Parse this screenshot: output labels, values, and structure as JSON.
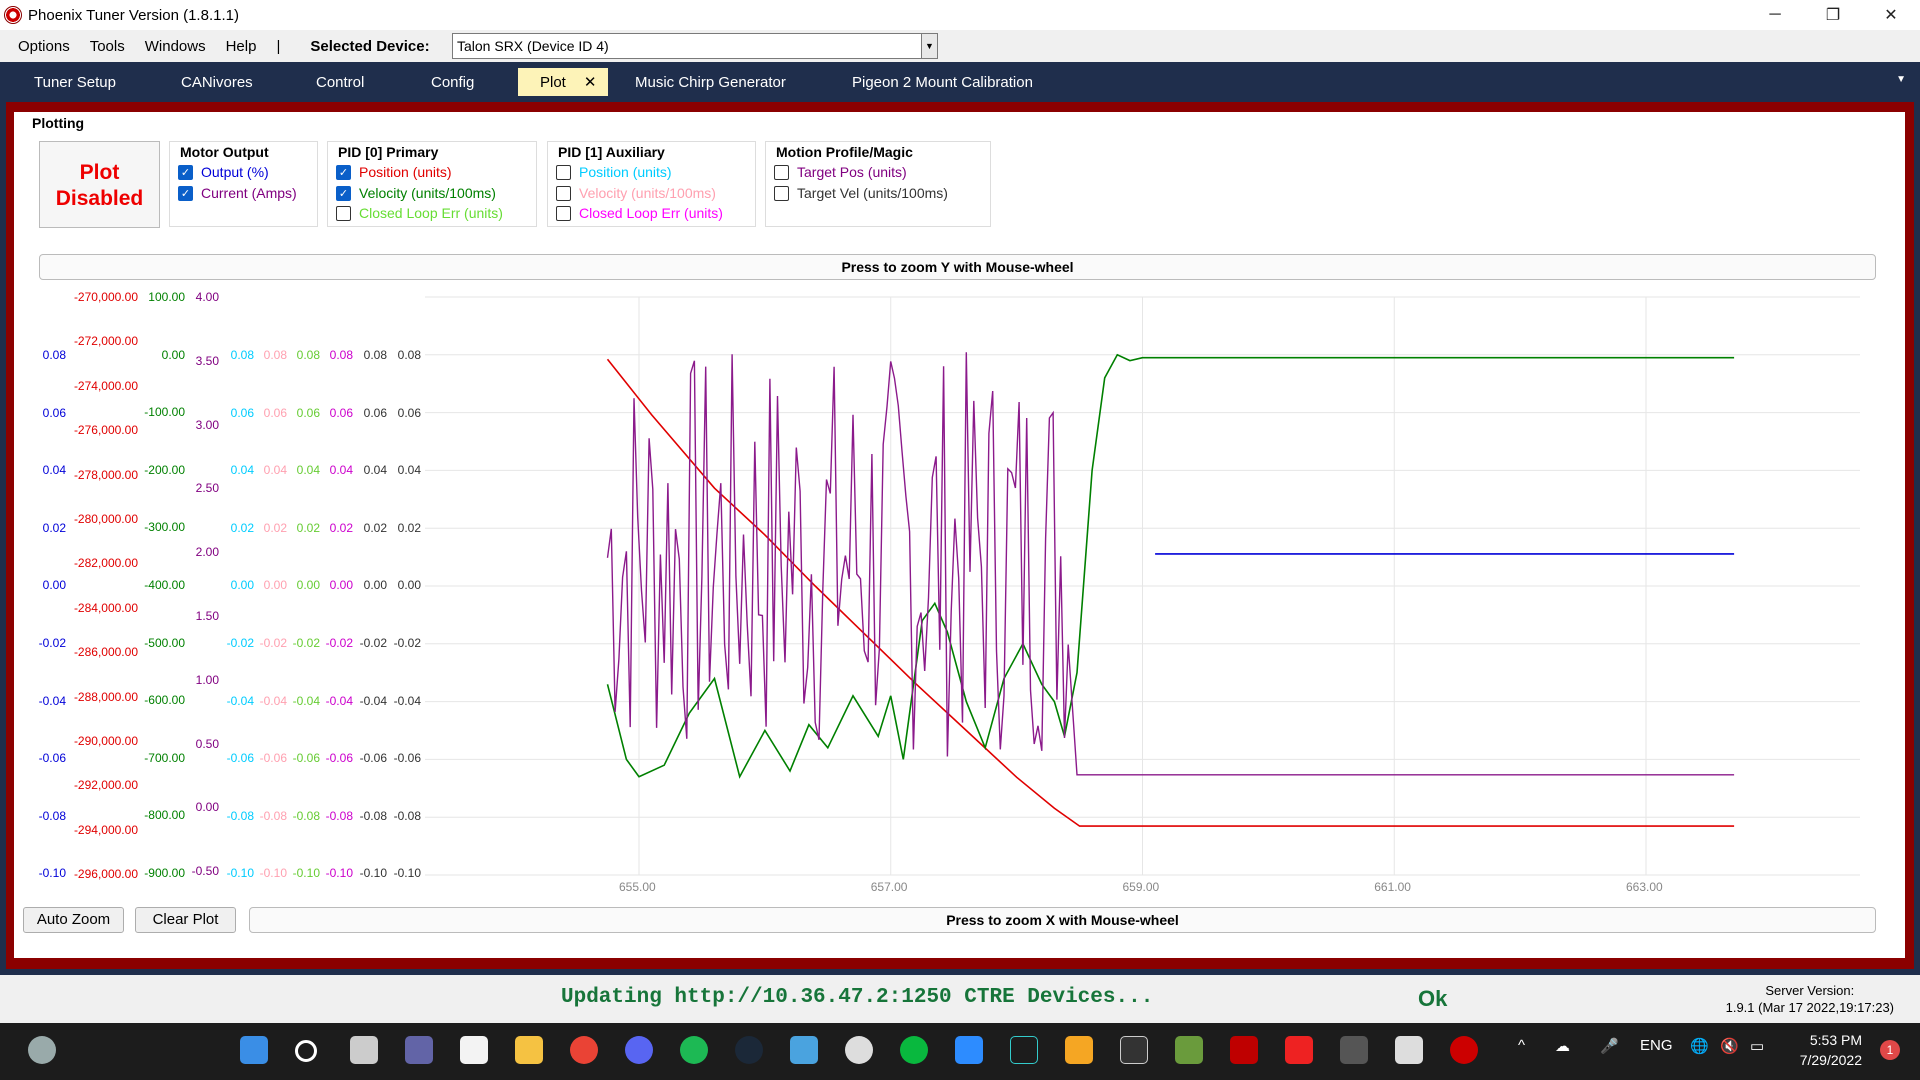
{
  "window": {
    "title": "Phoenix Tuner Version (1.8.1.1)",
    "minimize": "─",
    "restore": "❐",
    "close": "✕"
  },
  "menu": {
    "items": [
      "Options",
      "Tools",
      "Windows",
      "Help"
    ],
    "separator": "|",
    "selected_device_label": "Selected Device:",
    "selected_device_value": "Talon SRX (Device ID 4)"
  },
  "tabs": [
    {
      "label": "Tuner Setup"
    },
    {
      "label": "CANivores"
    },
    {
      "label": "Control"
    },
    {
      "label": "Config"
    },
    {
      "label": "Plot",
      "close": "✕"
    },
    {
      "label": "Music Chirp Generator"
    },
    {
      "label": "Pigeon 2 Mount Calibration"
    }
  ],
  "plot": {
    "section_label": "Plotting",
    "plot_toggle": "Plot Disabled",
    "groups": {
      "motor_output": {
        "title": "Motor Output",
        "items": [
          {
            "label": "Output (%)",
            "checked": true,
            "color": "#0000d8"
          },
          {
            "label": "Current (Amps)",
            "checked": true,
            "color": "#800080"
          }
        ]
      },
      "pid0": {
        "title": "PID [0] Primary",
        "items": [
          {
            "label": "Position (units)",
            "checked": true,
            "color": "#e00000"
          },
          {
            "label": "Velocity (units/100ms)",
            "checked": true,
            "color": "#008000"
          },
          {
            "label": "Closed Loop Err (units)",
            "checked": false,
            "color": "#66dd33"
          }
        ]
      },
      "pid1": {
        "title": "PID [1] Auxiliary",
        "items": [
          {
            "label": "Position (units)",
            "checked": false,
            "color": "#00ccff"
          },
          {
            "label": "Velocity (units/100ms)",
            "checked": false,
            "color": "#ffa0b0"
          },
          {
            "label": "Closed Loop Err (units)",
            "checked": false,
            "color": "#ff00ff"
          }
        ]
      },
      "motion": {
        "title": "Motion Profile/Magic",
        "items": [
          {
            "label": "Target Pos (units)",
            "checked": false,
            "color": "#800080"
          },
          {
            "label": "Target Vel (units/100ms)",
            "checked": false,
            "color": "#333333"
          }
        ]
      }
    },
    "zoom_y": "Press to zoom Y with Mouse-wheel",
    "zoom_x": "Press to zoom X with Mouse-wheel",
    "auto_zoom": "Auto Zoom",
    "clear_plot": "Clear Plot"
  },
  "chart_data": {
    "type": "line",
    "title": "",
    "xlabel": "",
    "ylabel": "",
    "x_ticks": [
      "655.00",
      "657.00",
      "659.00",
      "661.00",
      "663.00"
    ],
    "xlim": [
      653.3,
      664.7
    ],
    "grid": true,
    "y_axes": {
      "output": {
        "color": "#0000d8",
        "ticks": [
          "0.08",
          "0.06",
          "0.04",
          "0.02",
          "0.00",
          "-0.02",
          "-0.04",
          "-0.06",
          "-0.08",
          "-0.10"
        ]
      },
      "position": {
        "color": "#e00000",
        "ticks": [
          "-270,000.00",
          "-272,000.00",
          "-274,000.00",
          "-276,000.00",
          "-278,000.00",
          "-280,000.00",
          "-282,000.00",
          "-284,000.00",
          "-286,000.00",
          "-288,000.00",
          "-290,000.00",
          "-292,000.00",
          "-294,000.00",
          "-296,000.00"
        ]
      },
      "velocity": {
        "color": "#008000",
        "ticks": [
          "100.00",
          "0.00",
          "-100.00",
          "-200.00",
          "-300.00",
          "-400.00",
          "-500.00",
          "-600.00",
          "-700.00",
          "-800.00",
          "-900.00"
        ]
      },
      "current": {
        "color": "#800080",
        "ticks": [
          "4.00",
          "3.50",
          "3.00",
          "2.50",
          "2.00",
          "1.50",
          "1.00",
          "0.50",
          "0.00",
          "-0.50"
        ]
      },
      "pid1_pos": {
        "color": "#00ccff",
        "ticks": [
          "0.08",
          "0.06",
          "0.04",
          "0.02",
          "0.00",
          "-0.02",
          "-0.04",
          "-0.06",
          "-0.08",
          "-0.10"
        ]
      },
      "pid1_vel": {
        "color": "#ffa0b0",
        "ticks": [
          "0.08",
          "0.06",
          "0.04",
          "0.02",
          "0.00",
          "-0.02",
          "-0.04",
          "-0.06",
          "-0.08",
          "-0.10"
        ]
      },
      "pid0_err": {
        "color": "#66cc33",
        "ticks": [
          "0.08",
          "0.06",
          "0.04",
          "0.02",
          "0.00",
          "-0.02",
          "-0.04",
          "-0.06",
          "-0.08",
          "-0.10"
        ]
      },
      "pid1_err": {
        "color": "#cc00cc",
        "ticks": [
          "0.08",
          "0.06",
          "0.04",
          "0.02",
          "0.00",
          "-0.02",
          "-0.04",
          "-0.06",
          "-0.08",
          "-0.10"
        ]
      },
      "target_pos": {
        "color": "#333333",
        "ticks": [
          "0.08",
          "0.06",
          "0.04",
          "0.02",
          "0.00",
          "-0.02",
          "-0.04",
          "-0.06",
          "-0.08",
          "-0.10"
        ]
      },
      "target_vel": {
        "color": "#333333",
        "ticks": [
          "0.08",
          "0.06",
          "0.04",
          "0.02",
          "0.00",
          "-0.02",
          "-0.04",
          "-0.06",
          "-0.08",
          "-0.10"
        ]
      }
    },
    "series": [
      {
        "color": "#e00000",
        "x": [
          654.75,
          655.1,
          655.6,
          656.0,
          656.4,
          656.8,
          657.2,
          657.6,
          658.0,
          658.3,
          658.5,
          658.9,
          663.7
        ],
        "y": [
          -272800,
          -275300,
          -278600,
          -280700,
          -283000,
          -285200,
          -287400,
          -289500,
          -291600,
          -293000,
          -293800,
          -293800,
          -293800
        ]
      },
      {
        "color": "#008000",
        "x": [
          654.75,
          654.9,
          655.0,
          655.2,
          655.4,
          655.6,
          655.8,
          656.0,
          656.2,
          656.35,
          656.5,
          656.7,
          656.9,
          657.0,
          657.1,
          657.25,
          657.35,
          657.45,
          657.6,
          657.75,
          657.9,
          658.05,
          658.2,
          658.3,
          658.38,
          658.48,
          658.6,
          658.7,
          658.8,
          658.9,
          659.0,
          663.7
        ],
        "y": [
          -570,
          -700,
          -730,
          -710,
          -620,
          -560,
          -730,
          -650,
          -720,
          -640,
          -680,
          -590,
          -660,
          -590,
          -700,
          -460,
          -430,
          -480,
          -600,
          -680,
          -560,
          -500,
          -570,
          -600,
          -660,
          -550,
          -200,
          -40,
          0,
          -10,
          -5,
          -5
        ]
      },
      {
        "color": "#0000d8",
        "x": [
          659.1,
          663.7
        ],
        "y": [
          0.0,
          0.0
        ]
      }
    ],
    "current_trace_note_free": true,
    "current_final_value": 0.28
  },
  "status": {
    "message": "Updating http://10.36.47.2:1250 CTRE Devices...",
    "ok": "Ok",
    "server_version_label": "Server Version:",
    "server_version_value": "1.9.1 (Mar 17 2022,19:17:23)"
  },
  "taskbar": {
    "lang": "ENG",
    "time": "5:53 PM",
    "date": "7/29/2022",
    "notifications": "1"
  }
}
